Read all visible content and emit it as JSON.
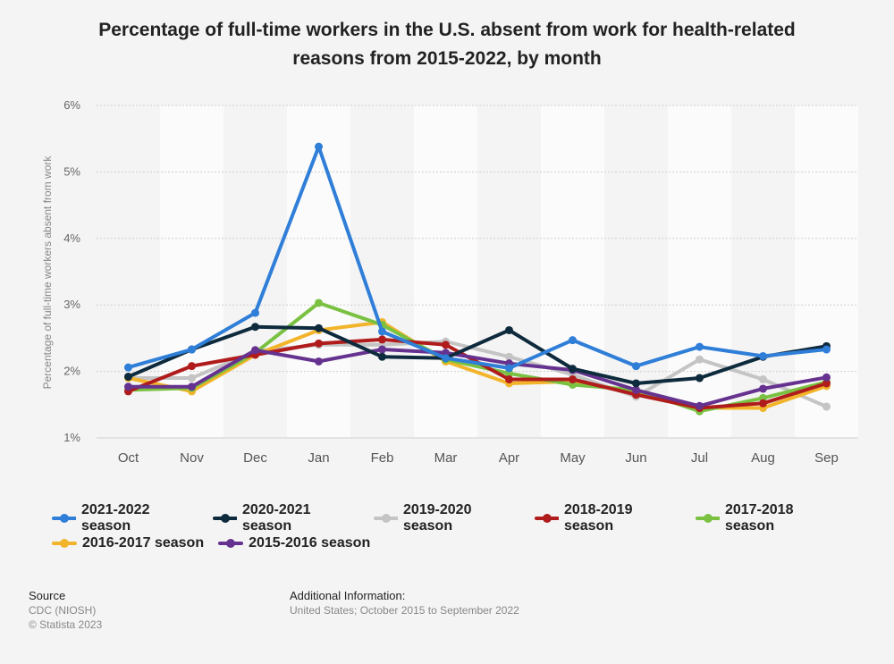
{
  "title": "Percentage of full-time workers in the U.S. absent from work for health-related reasons from 2015-2022, by month",
  "chart_data": {
    "type": "line",
    "title": "Percentage of full-time workers in the U.S. absent from work for health-related reasons from 2015-2022, by month",
    "xlabel": "",
    "ylabel": "Percentage of full-time workers absent from work",
    "ylim": [
      1,
      6
    ],
    "yticks": [
      "1%",
      "2%",
      "3%",
      "4%",
      "5%",
      "6%"
    ],
    "categories": [
      "Oct",
      "Nov",
      "Dec",
      "Jan",
      "Feb",
      "Mar",
      "Apr",
      "May",
      "Jun",
      "Jul",
      "Aug",
      "Sep"
    ],
    "series": [
      {
        "name": "2019-2020 season",
        "color": "#c4c4c4",
        "values": [
          1.9,
          1.9,
          2.3,
          2.4,
          2.4,
          2.45,
          2.22,
          1.95,
          1.62,
          2.18,
          1.88,
          1.47
        ]
      },
      {
        "name": "2016-2017 season",
        "color": "#f2b42a",
        "values": [
          1.9,
          1.7,
          2.25,
          2.62,
          2.74,
          2.15,
          1.82,
          1.85,
          1.68,
          1.45,
          1.45,
          1.78
        ]
      },
      {
        "name": "2017-2018 season",
        "color": "#7ac142",
        "values": [
          1.72,
          1.75,
          2.28,
          3.03,
          2.7,
          2.18,
          1.97,
          1.8,
          1.72,
          1.4,
          1.6,
          1.84
        ]
      },
      {
        "name": "2018-2019 season",
        "color": "#b01c1c",
        "values": [
          1.7,
          2.08,
          2.25,
          2.42,
          2.48,
          2.4,
          1.88,
          1.88,
          1.65,
          1.45,
          1.52,
          1.82
        ]
      },
      {
        "name": "2015-2016 season",
        "color": "#66328f",
        "values": [
          1.77,
          1.77,
          2.32,
          2.15,
          2.33,
          2.28,
          2.12,
          2.02,
          1.72,
          1.48,
          1.74,
          1.91
        ]
      },
      {
        "name": "2020-2021 season",
        "color": "#0e2a3d",
        "values": [
          1.92,
          2.33,
          2.67,
          2.65,
          2.22,
          2.2,
          2.62,
          2.04,
          1.82,
          1.9,
          2.22,
          2.38
        ]
      },
      {
        "name": "2021-2022 season",
        "color": "#2f7ed8",
        "values": [
          2.06,
          2.33,
          2.88,
          5.38,
          2.6,
          2.2,
          2.05,
          2.47,
          2.08,
          2.37,
          2.23,
          2.33
        ]
      }
    ]
  },
  "legend": {
    "rows": [
      [
        {
          "label": "2021-2022 season",
          "color": "#2f7ed8"
        },
        {
          "label": "2020-2021 season",
          "color": "#0e2a3d"
        },
        {
          "label": "2019-2020 season",
          "color": "#c4c4c4"
        },
        {
          "label": "2018-2019 season",
          "color": "#b01c1c"
        },
        {
          "label": "2017-2018 season",
          "color": "#7ac142"
        }
      ],
      [
        {
          "label": "2016-2017 season",
          "color": "#f2b42a"
        },
        {
          "label": "2015-2016 season",
          "color": "#66328f"
        }
      ]
    ]
  },
  "footer": {
    "source_label": "Source",
    "source_lines": [
      "CDC (NIOSH)",
      "© Statista 2023"
    ],
    "info_label": "Additional Information:",
    "info_text": "United States; October 2015 to September 2022"
  }
}
